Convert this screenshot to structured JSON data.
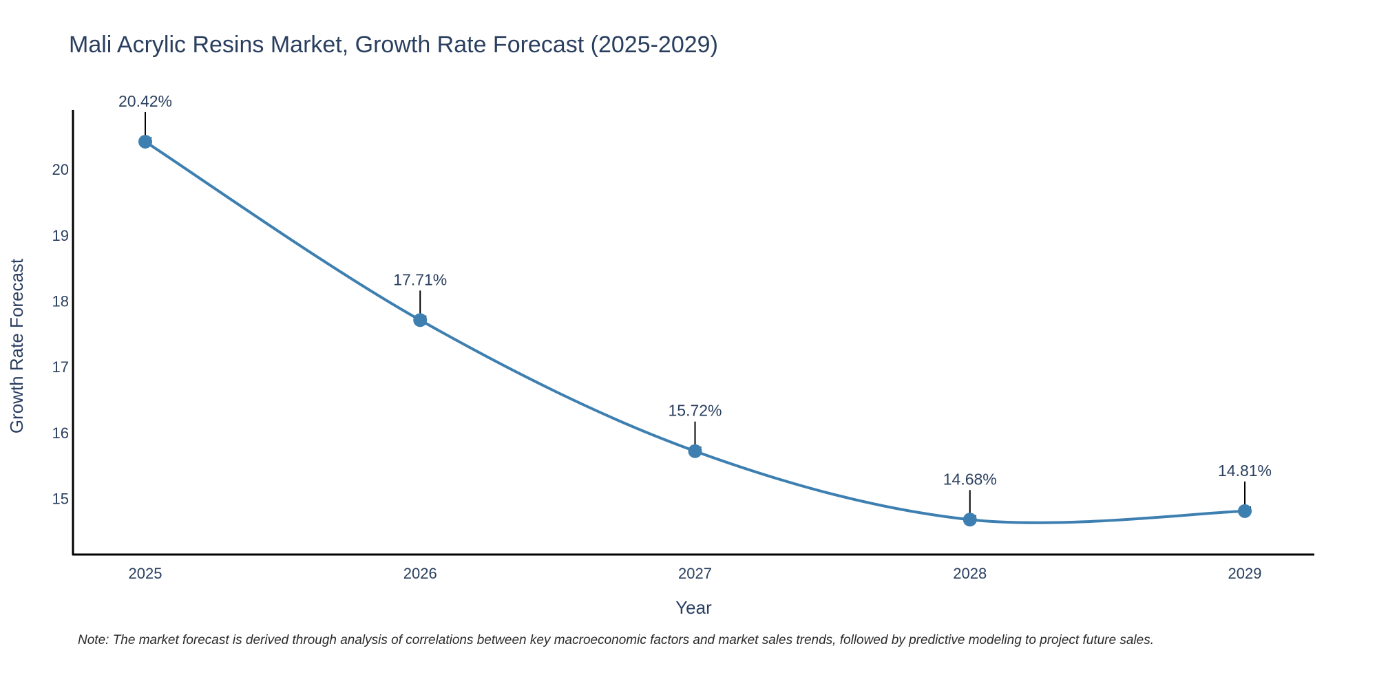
{
  "chart_data": {
    "type": "line",
    "title": "Mali Acrylic Resins Market, Growth Rate Forecast (2025-2029)",
    "xlabel": "Year",
    "ylabel": "Growth Rate Forecast",
    "categories": [
      "2025",
      "2026",
      "2027",
      "2028",
      "2029"
    ],
    "series": [
      {
        "name": "Growth Rate Forecast",
        "values": [
          20.42,
          17.71,
          15.72,
          14.68,
          14.81
        ],
        "labels": [
          "20.42%",
          "17.71%",
          "15.72%",
          "14.68%",
          "14.81%"
        ],
        "color": "#3d7fb0"
      }
    ],
    "y_ticks": [
      15,
      16,
      17,
      18,
      19,
      20
    ],
    "ylim": [
      14.15,
      20.9
    ],
    "grid": false,
    "legend": "none",
    "note": "Note: The market forecast is derived through analysis of correlations between key macroeconomic factors and market sales trends, followed by predictive modeling to project future sales."
  }
}
